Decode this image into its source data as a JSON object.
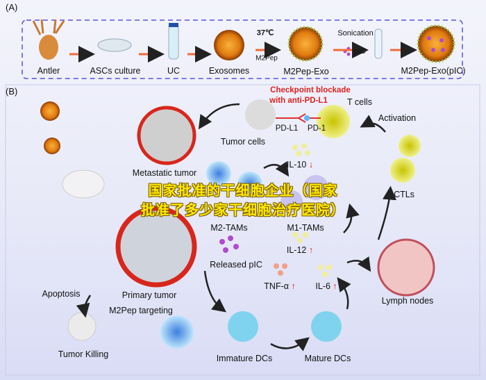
{
  "panel_a": {
    "label": "(A)",
    "steps": [
      "Antler",
      "ASCs culture",
      "UC",
      "Exosomes",
      "M2Pep-Exo",
      "M2Pep-Exo(pIC)"
    ],
    "condition": "37℃",
    "peptide": "M2Pep",
    "sonication": "Sonication",
    "pic": "pIC"
  },
  "panel_b": {
    "label": "(B)",
    "checkpoint_line1": "Checkpoint blockade",
    "checkpoint_line2": "with anti-PD-L1",
    "t_cells": "T cells",
    "pd_l1": "PD-L1",
    "pd_1": "PD-1",
    "tumor_cells": "Tumor cells",
    "metastatic_tumor": "Metastatic tumor",
    "il10": "IL-10",
    "m2_tams": "M2-TAMs",
    "m1_tams": "M1-TAMs",
    "activation": "Activation",
    "ctls": "CTLs",
    "il12": "IL-12",
    "released_pic": "Released pIC",
    "tnf": "TNF-α",
    "il6": "IL-6",
    "lymph_nodes": "Lymph nodes",
    "apoptosis": "Apoptosis",
    "primary_tumor": "Primary tumor",
    "m2pep_targeting": "M2Pep targeting",
    "tumor_killing": "Tumor Killing",
    "immature_dcs": "Immature DCs",
    "mature_dcs": "Mature DCs",
    "up_arrow": "↑",
    "down_arrow": "↓"
  },
  "overlay": {
    "line1": "国家批准的干细胞企业（国家",
    "line2": "批准了多少家干细胞治疗医院）"
  },
  "colors": {
    "accent_red": "#e0201e",
    "dashed_border": "#5a4fe0",
    "overlay_text": "#ffea00"
  }
}
